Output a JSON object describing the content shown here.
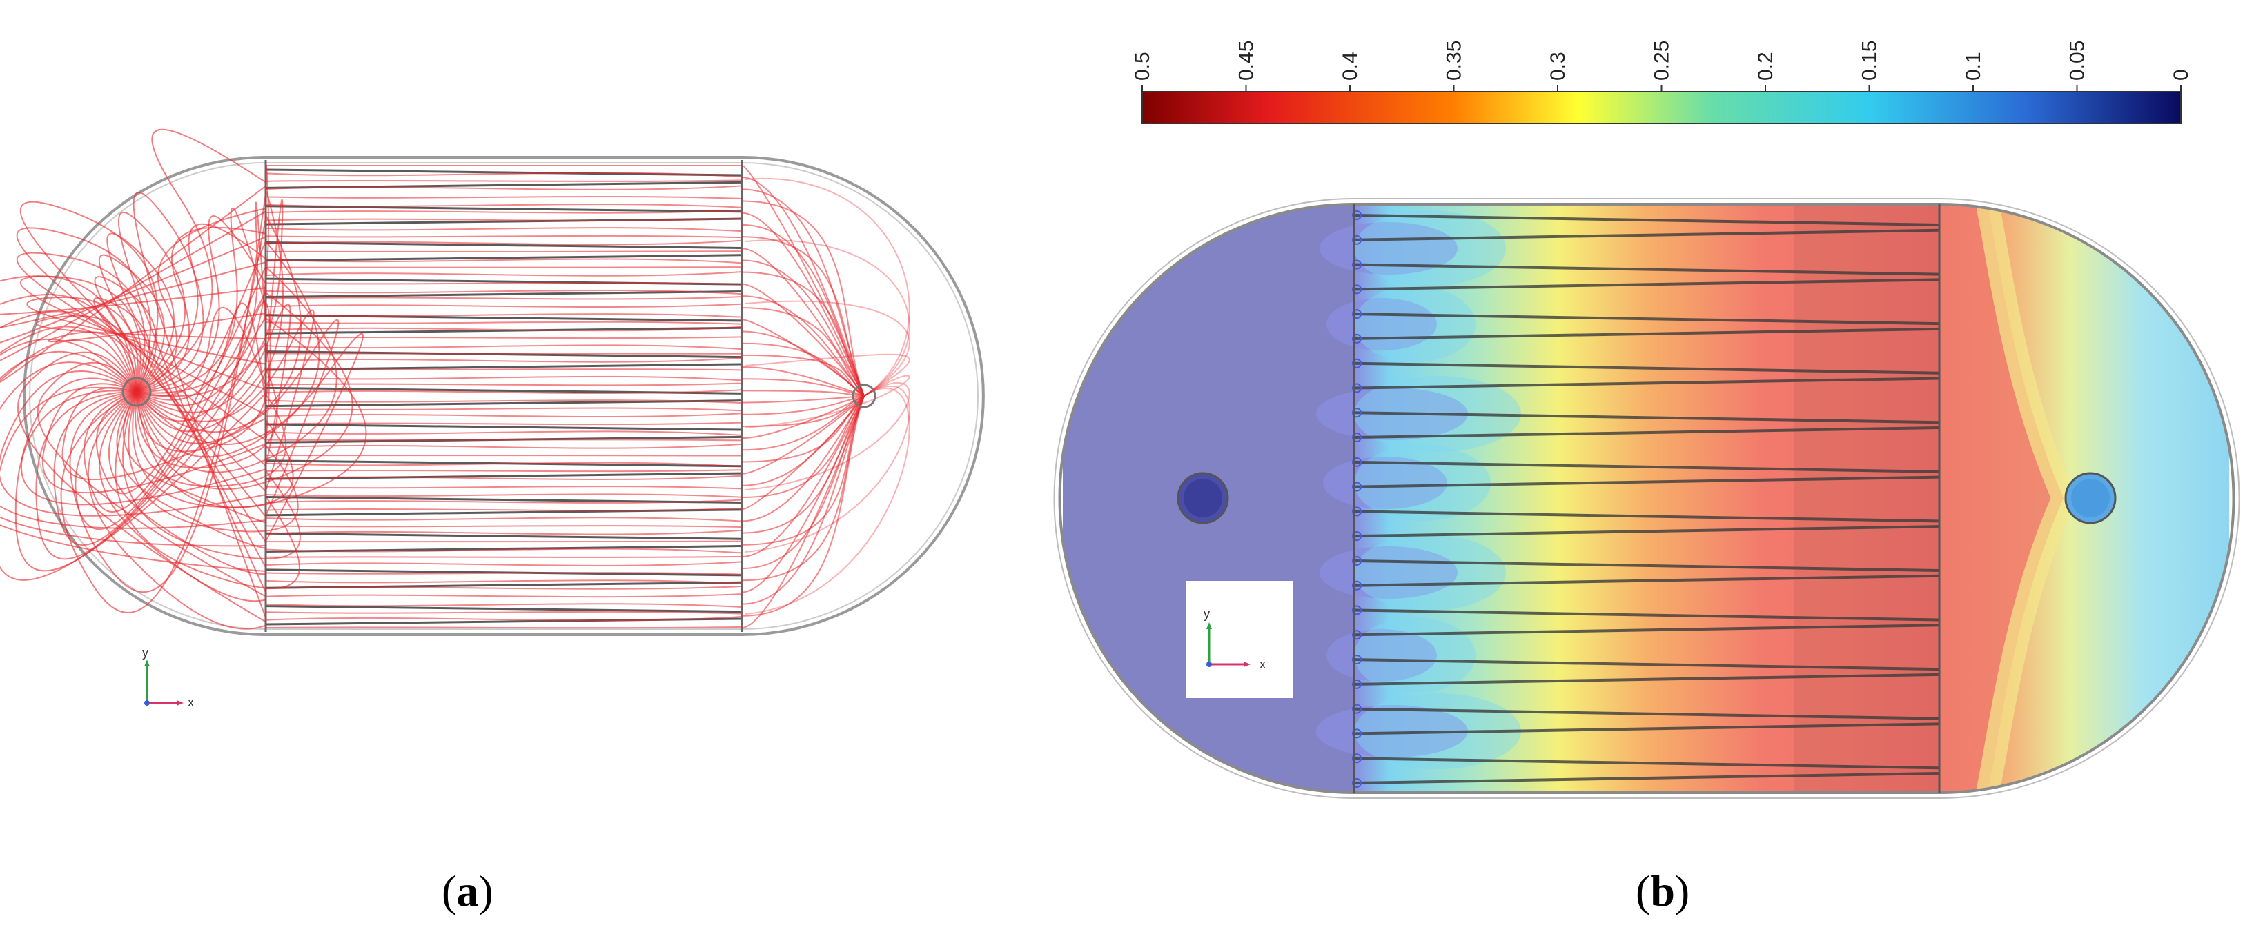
{
  "panels": {
    "a": {
      "label_open": "(",
      "label_letter": "a",
      "label_close": ")",
      "axis_x": "x",
      "axis_y": "y"
    },
    "b": {
      "label_open": "(",
      "label_letter": "b",
      "label_close": ")",
      "axis_x": "x",
      "axis_y": "y"
    }
  },
  "colorbar": {
    "ticks": [
      "0.5",
      "0.45",
      "0.4",
      "0.35",
      "0.3",
      "0.25",
      "0.2",
      "0.15",
      "0.1",
      "0.05",
      "0"
    ],
    "max": 0.5,
    "min": 0,
    "colors": [
      "#7f0000",
      "#e31a1c",
      "#ff7f00",
      "#ffff33",
      "#66ddaa",
      "#33ccee",
      "#2b6cd6",
      "#0a0a60"
    ]
  },
  "colors": {
    "streamline": "#e8262c",
    "tube": "#555555",
    "outline": "#9a9a9a",
    "inlet_region": "#8183c4"
  }
}
